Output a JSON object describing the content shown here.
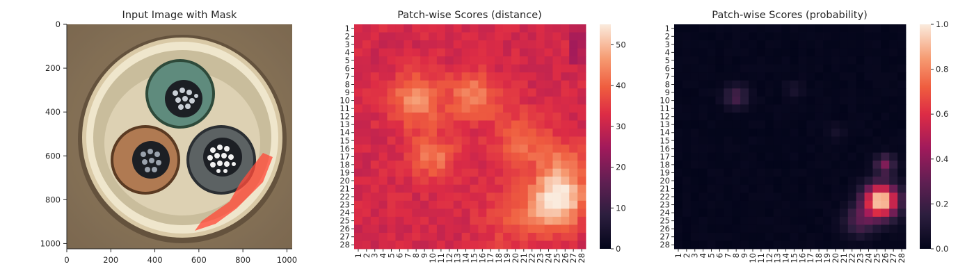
{
  "chart_data": [
    {
      "type": "image",
      "title": "Input Image with Mask",
      "x_ticks": [
        "0",
        "200",
        "400",
        "600",
        "800",
        "1000"
      ],
      "y_ticks": [
        "0",
        "200",
        "400",
        "600",
        "800",
        "1000"
      ],
      "xlim": [
        0,
        1024
      ],
      "ylim": [
        1024,
        0
      ]
    },
    {
      "type": "heatmap",
      "title": "Patch-wise Scores (distance)",
      "rows": 28,
      "cols": 28,
      "row_labels": [
        "1",
        "2",
        "3",
        "4",
        "5",
        "6",
        "7",
        "8",
        "9",
        "10",
        "11",
        "12",
        "13",
        "14",
        "15",
        "16",
        "17",
        "18",
        "19",
        "20",
        "21",
        "22",
        "23",
        "24",
        "25",
        "26",
        "27",
        "28"
      ],
      "col_labels": [
        "1",
        "2",
        "3",
        "4",
        "5",
        "6",
        "7",
        "8",
        "9",
        "10",
        "11",
        "12",
        "13",
        "14",
        "15",
        "16",
        "17",
        "18",
        "19",
        "20",
        "21",
        "22",
        "23",
        "24",
        "25",
        "26",
        "27",
        "28"
      ],
      "colorbar_ticks": [
        "0",
        "10",
        "20",
        "30",
        "40",
        "50"
      ],
      "vmin": 0,
      "vmax": 55
    },
    {
      "type": "heatmap",
      "title": "Patch-wise Scores (probability)",
      "rows": 28,
      "cols": 28,
      "row_labels": [
        "1",
        "2",
        "3",
        "4",
        "5",
        "6",
        "7",
        "8",
        "9",
        "10",
        "11",
        "12",
        "13",
        "14",
        "15",
        "16",
        "17",
        "18",
        "19",
        "20",
        "21",
        "22",
        "23",
        "24",
        "25",
        "26",
        "27",
        "28"
      ],
      "col_labels": [
        "1",
        "2",
        "3",
        "4",
        "5",
        "6",
        "7",
        "8",
        "9",
        "10",
        "11",
        "12",
        "13",
        "14",
        "15",
        "16",
        "17",
        "18",
        "19",
        "20",
        "21",
        "22",
        "23",
        "24",
        "25",
        "26",
        "27",
        "28"
      ],
      "colorbar_ticks": [
        "0.0",
        "0.2",
        "0.4",
        "0.6",
        "0.8",
        "1.0"
      ],
      "vmin": 0,
      "vmax": 1
    }
  ]
}
